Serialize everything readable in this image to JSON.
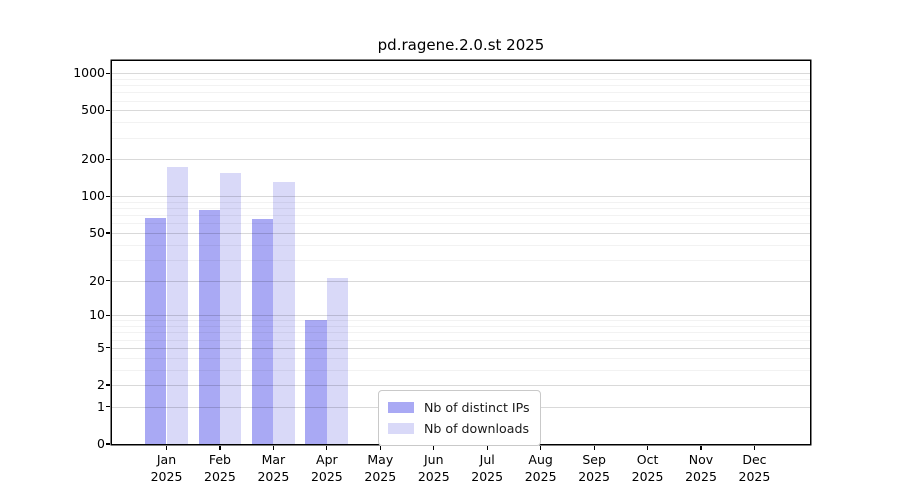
{
  "page": {
    "background": "#ffffff"
  },
  "chart_data": {
    "type": "bar",
    "title": "pd.ragene.2.0.st 2025",
    "xlabel": "",
    "ylabel": "",
    "yscale": "log1p",
    "ylim": [
      0,
      1258
    ],
    "y_ticks": [
      0,
      1,
      2,
      5,
      10,
      20,
      50,
      100,
      200,
      500,
      1000
    ],
    "y_minor_ticks": [
      3,
      4,
      6,
      7,
      8,
      9,
      30,
      40,
      60,
      70,
      80,
      90,
      300,
      400,
      600,
      700,
      800,
      900
    ],
    "categories": [
      "Jan",
      "Feb",
      "Mar",
      "Apr",
      "May",
      "Jun",
      "Jul",
      "Aug",
      "Sep",
      "Oct",
      "Nov",
      "Dec"
    ],
    "year_label": "2025",
    "grid": {
      "axis": "y",
      "major": true,
      "minor": true,
      "position": "above-bars"
    },
    "legend": {
      "position": "lower center"
    },
    "series": [
      {
        "name": "Nb of distinct IPs",
        "color": "#a9a9f4",
        "values": [
          67,
          77,
          65,
          9,
          null,
          null,
          null,
          null,
          null,
          null,
          null,
          null
        ]
      },
      {
        "name": "Nb of downloads",
        "color": "#d9d9f8",
        "values": [
          173,
          156,
          132,
          21,
          null,
          null,
          null,
          null,
          null,
          null,
          null,
          null
        ]
      }
    ]
  }
}
